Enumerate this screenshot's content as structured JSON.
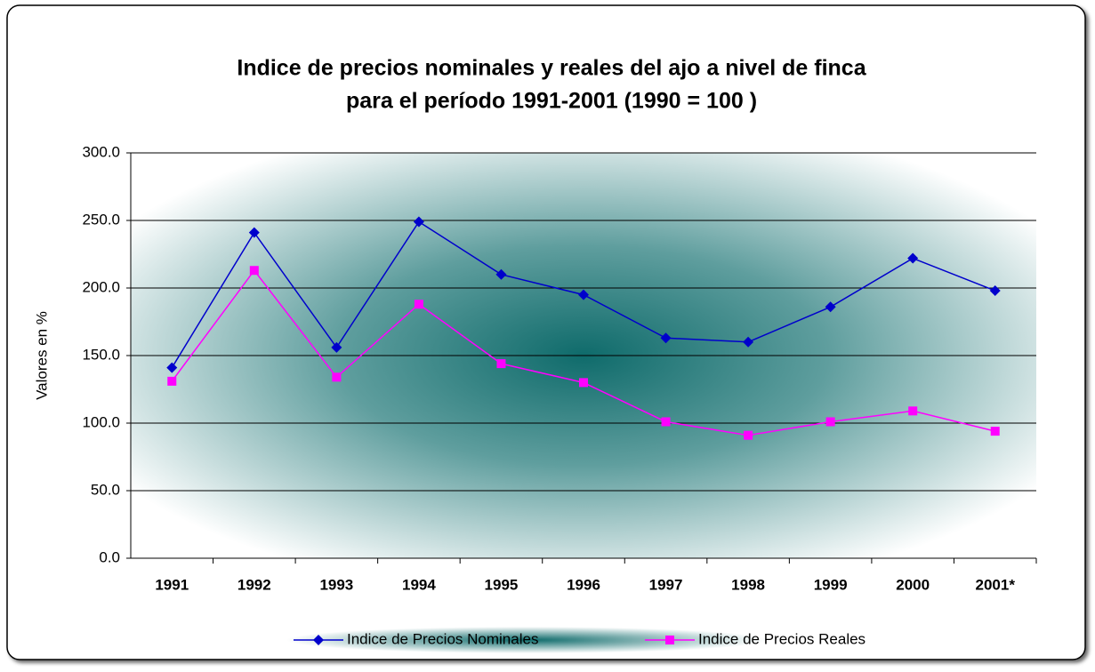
{
  "chart_data": {
    "type": "line",
    "title": [
      "Indice de precios nominales y reales del ajo a nivel de finca",
      "para el período 1991-2001  (1990 = 100 )"
    ],
    "y_label": "Valores en %",
    "categories": [
      "1991",
      "1992",
      "1993",
      "1994",
      "1995",
      "1996",
      "1997",
      "1998",
      "1999",
      "2000",
      "2001*"
    ],
    "series": [
      {
        "name": "Indice de Precios Nominales",
        "color": "#0000cc",
        "marker": "diamond",
        "values": [
          141,
          241,
          156,
          249,
          210,
          195,
          163,
          160,
          186,
          222,
          198
        ]
      },
      {
        "name": "Indice de Precios Reales",
        "color": "#ff00ff",
        "marker": "square",
        "values": [
          131,
          213,
          134,
          188,
          144,
          130,
          101,
          91,
          101,
          109,
          94
        ]
      }
    ],
    "ylim": [
      0,
      300
    ],
    "yticks": [
      {
        "value": 0,
        "label": "0.0"
      },
      {
        "value": 50,
        "label": "50.0"
      },
      {
        "value": 100,
        "label": "100.0"
      },
      {
        "value": 150,
        "label": "150.0"
      },
      {
        "value": 200,
        "label": "200.0"
      },
      {
        "value": 250,
        "label": "250.0"
      },
      {
        "value": 300,
        "label": "300.0"
      }
    ],
    "grid": true,
    "legend": "bottom"
  }
}
